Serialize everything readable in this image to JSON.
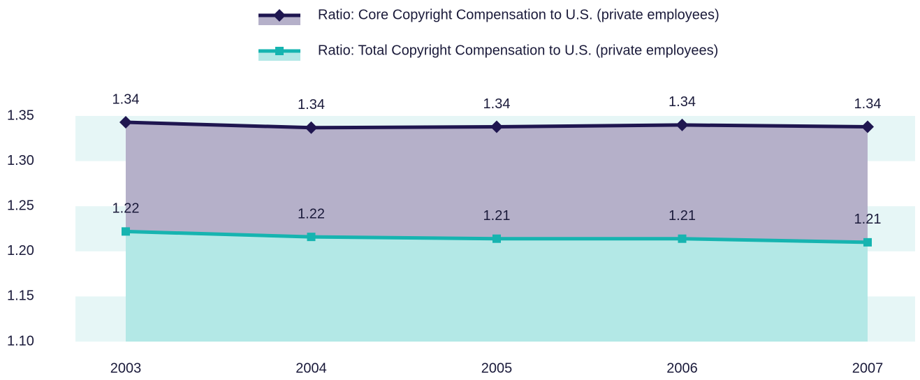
{
  "chart_data": {
    "type": "area",
    "categories": [
      "2003",
      "2004",
      "2005",
      "2006",
      "2007"
    ],
    "series": [
      {
        "name": "Ratio: Core Copyright Compensation to U.S. (private employees)",
        "color": "#1f1650",
        "area_color": "#b5b0c9",
        "marker": "diamond",
        "values": [
          1.343,
          1.337,
          1.338,
          1.34,
          1.338
        ],
        "value_labels": [
          "1.34",
          "1.34",
          "1.34",
          "1.34",
          "1.34"
        ]
      },
      {
        "name": "Ratio: Total Copyright Compensation to U.S. (private employees)",
        "color": "#16b4b0",
        "area_color": "#b3e8e6",
        "marker": "square",
        "values": [
          1.222,
          1.216,
          1.214,
          1.214,
          1.21
        ],
        "value_labels": [
          "1.22",
          "1.22",
          "1.21",
          "1.21",
          "1.21"
        ]
      }
    ],
    "ylim": [
      1.1,
      1.35
    ],
    "yticks": [
      {
        "value": 1.1,
        "label": "1.10"
      },
      {
        "value": 1.15,
        "label": "1.15"
      },
      {
        "value": 1.2,
        "label": "1.20"
      },
      {
        "value": 1.25,
        "label": "1.25"
      },
      {
        "value": 1.3,
        "label": "1.30"
      },
      {
        "value": 1.35,
        "label": "1.35"
      }
    ],
    "grid": true,
    "grid_color": "#e6f6f6"
  }
}
